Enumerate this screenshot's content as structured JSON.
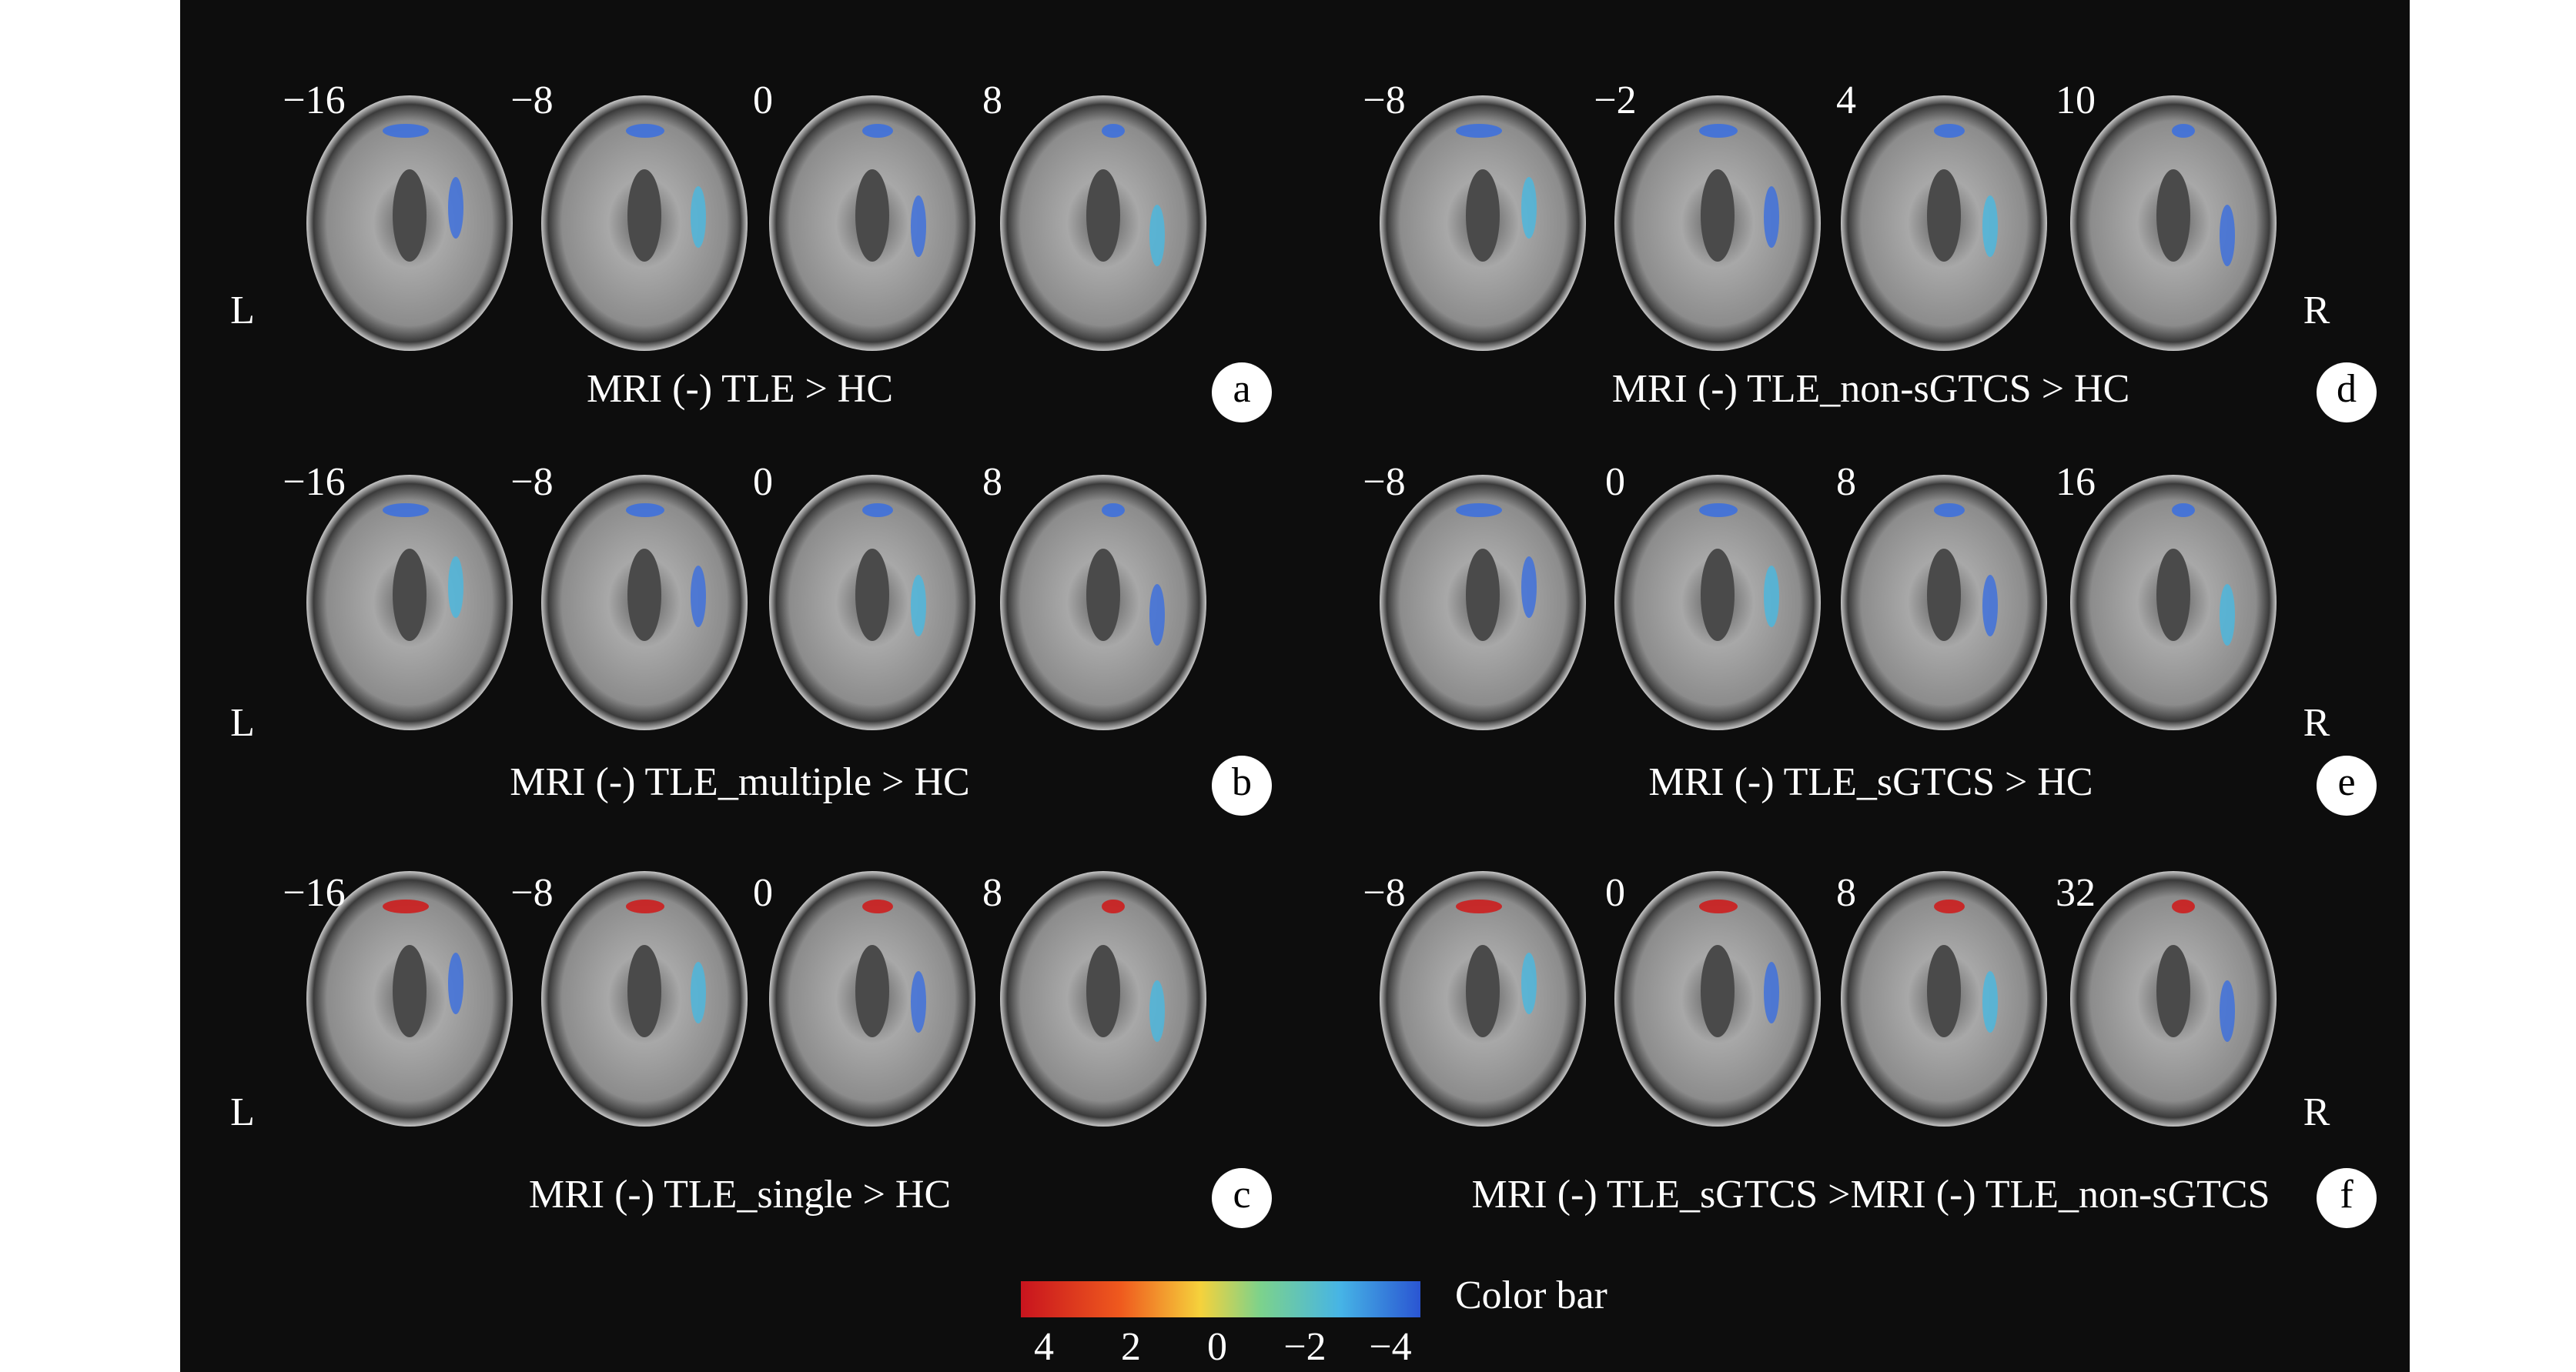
{
  "panels": [
    {
      "letter": "a",
      "caption": "MRI (-) TLE > HC",
      "slices": [
        "−16",
        "−8",
        "0",
        "8"
      ],
      "side_left": "L"
    },
    {
      "letter": "b",
      "caption": "MRI (-) TLE_multiple > HC",
      "slices": [
        "−16",
        "−8",
        "0",
        "8"
      ],
      "side_left": "L"
    },
    {
      "letter": "c",
      "caption": "MRI (-) TLE_single > HC",
      "slices": [
        "−16",
        "−8",
        "0",
        "8"
      ],
      "side_left": "L"
    },
    {
      "letter": "d",
      "caption": "MRI (-) TLE_non-sGTCS > HC",
      "slices": [
        "−8",
        "−2",
        "4",
        "10"
      ],
      "side_right": "R"
    },
    {
      "letter": "e",
      "caption": "MRI (-) TLE_sGTCS > HC",
      "slices": [
        "−8",
        "0",
        "8",
        "16"
      ],
      "side_right": "R"
    },
    {
      "letter": "f",
      "caption": "MRI (-) TLE_sGTCS >MRI (-) TLE_non-sGTCS",
      "slices": [
        "−8",
        "0",
        "8",
        "32"
      ],
      "side_right": "R"
    }
  ],
  "color_bar": {
    "label": "Color bar",
    "ticks": [
      "4",
      "2",
      "0",
      "−2",
      "−4"
    ]
  }
}
